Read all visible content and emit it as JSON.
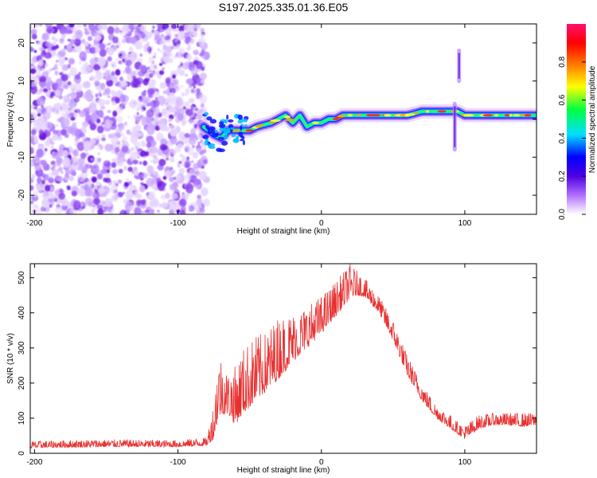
{
  "title": "S197.2025.335.01.36.E05",
  "chart_data": [
    {
      "type": "heatmap",
      "xlabel": "Height of straight line (km)",
      "ylabel": "Frequency (Hz)",
      "xlim": [
        -203,
        150
      ],
      "ylim": [
        -25,
        25
      ],
      "xticks": [
        -200,
        -100,
        0,
        100
      ],
      "yticks": [
        -20,
        -10,
        0,
        10,
        20
      ],
      "colorbar": {
        "label": "Normalized spectral amplitude",
        "range": [
          0,
          1
        ],
        "ticks": [
          "0.0",
          "0.2",
          "0.4",
          "0.6",
          "0.8"
        ],
        "tick_values": [
          0,
          0.2,
          0.4,
          0.6,
          0.8
        ],
        "colors": [
          "#ffffff",
          "#b070ff",
          "#5000e0",
          "#0000ff",
          "#00e0ff",
          "#00ff40",
          "#ffff00",
          "#ff8000",
          "#ff0000",
          "#ff1070"
        ]
      },
      "noise_region_km": [
        -203,
        -80
      ],
      "ridge": [
        [
          -82,
          -2
        ],
        [
          -75,
          -4
        ],
        [
          -70,
          -5
        ],
        [
          -65,
          -3
        ],
        [
          -60,
          -3
        ],
        [
          -50,
          -3
        ],
        [
          -45,
          -2
        ],
        [
          -35,
          -1
        ],
        [
          -30,
          0
        ],
        [
          -25,
          1
        ],
        [
          -20,
          -1
        ],
        [
          -15,
          1
        ],
        [
          -10,
          -2
        ],
        [
          -5,
          -1
        ],
        [
          0,
          -1
        ],
        [
          5,
          0
        ],
        [
          10,
          0
        ],
        [
          15,
          1
        ],
        [
          20,
          1
        ],
        [
          30,
          1
        ],
        [
          40,
          1
        ],
        [
          50,
          1
        ],
        [
          60,
          1
        ],
        [
          70,
          2
        ],
        [
          80,
          2
        ],
        [
          90,
          2
        ],
        [
          95,
          2
        ],
        [
          100,
          1
        ],
        [
          110,
          1
        ],
        [
          120,
          1
        ],
        [
          130,
          1
        ],
        [
          150,
          1
        ]
      ],
      "spikes": [
        {
          "x": 93,
          "y_low": -8,
          "y_high": 4,
          "note": "vertical streak near 93 km"
        },
        {
          "x": 96,
          "y_low": 10,
          "y_high": 18,
          "note": "faint isolated blob"
        }
      ]
    },
    {
      "type": "line",
      "xlabel": "Height of straight line (km)",
      "ylabel": "SNR (10 * v/v)",
      "xlim": [
        -203,
        150
      ],
      "ylim": [
        0,
        540
      ],
      "xticks": [
        -200,
        -100,
        0,
        100
      ],
      "yticks": [
        0,
        100,
        200,
        300,
        400,
        500
      ],
      "series": [
        {
          "name": "SNR",
          "color": "#e83030",
          "envelope_x": [
            -203,
            -150,
            -100,
            -80,
            -75,
            -72,
            -70,
            -65,
            -60,
            -55,
            -50,
            -45,
            -40,
            -30,
            -20,
            -10,
            0,
            10,
            20,
            25,
            30,
            40,
            50,
            60,
            70,
            80,
            90,
            95,
            100,
            110,
            120,
            130,
            140,
            150
          ],
          "envelope_base": [
            15,
            18,
            18,
            22,
            40,
            100,
            110,
            110,
            80,
            110,
            130,
            150,
            170,
            210,
            260,
            300,
            340,
            390,
            440,
            450,
            445,
            400,
            320,
            220,
            150,
            100,
            70,
            55,
            40,
            70,
            80,
            80,
            75,
            80
          ],
          "envelope_peak": [
            35,
            40,
            38,
            45,
            150,
            280,
            280,
            230,
            250,
            300,
            320,
            340,
            340,
            390,
            400,
            420,
            450,
            490,
            540,
            520,
            500,
            450,
            380,
            280,
            200,
            140,
            110,
            90,
            80,
            110,
            115,
            115,
            115,
            115
          ]
        }
      ]
    }
  ]
}
